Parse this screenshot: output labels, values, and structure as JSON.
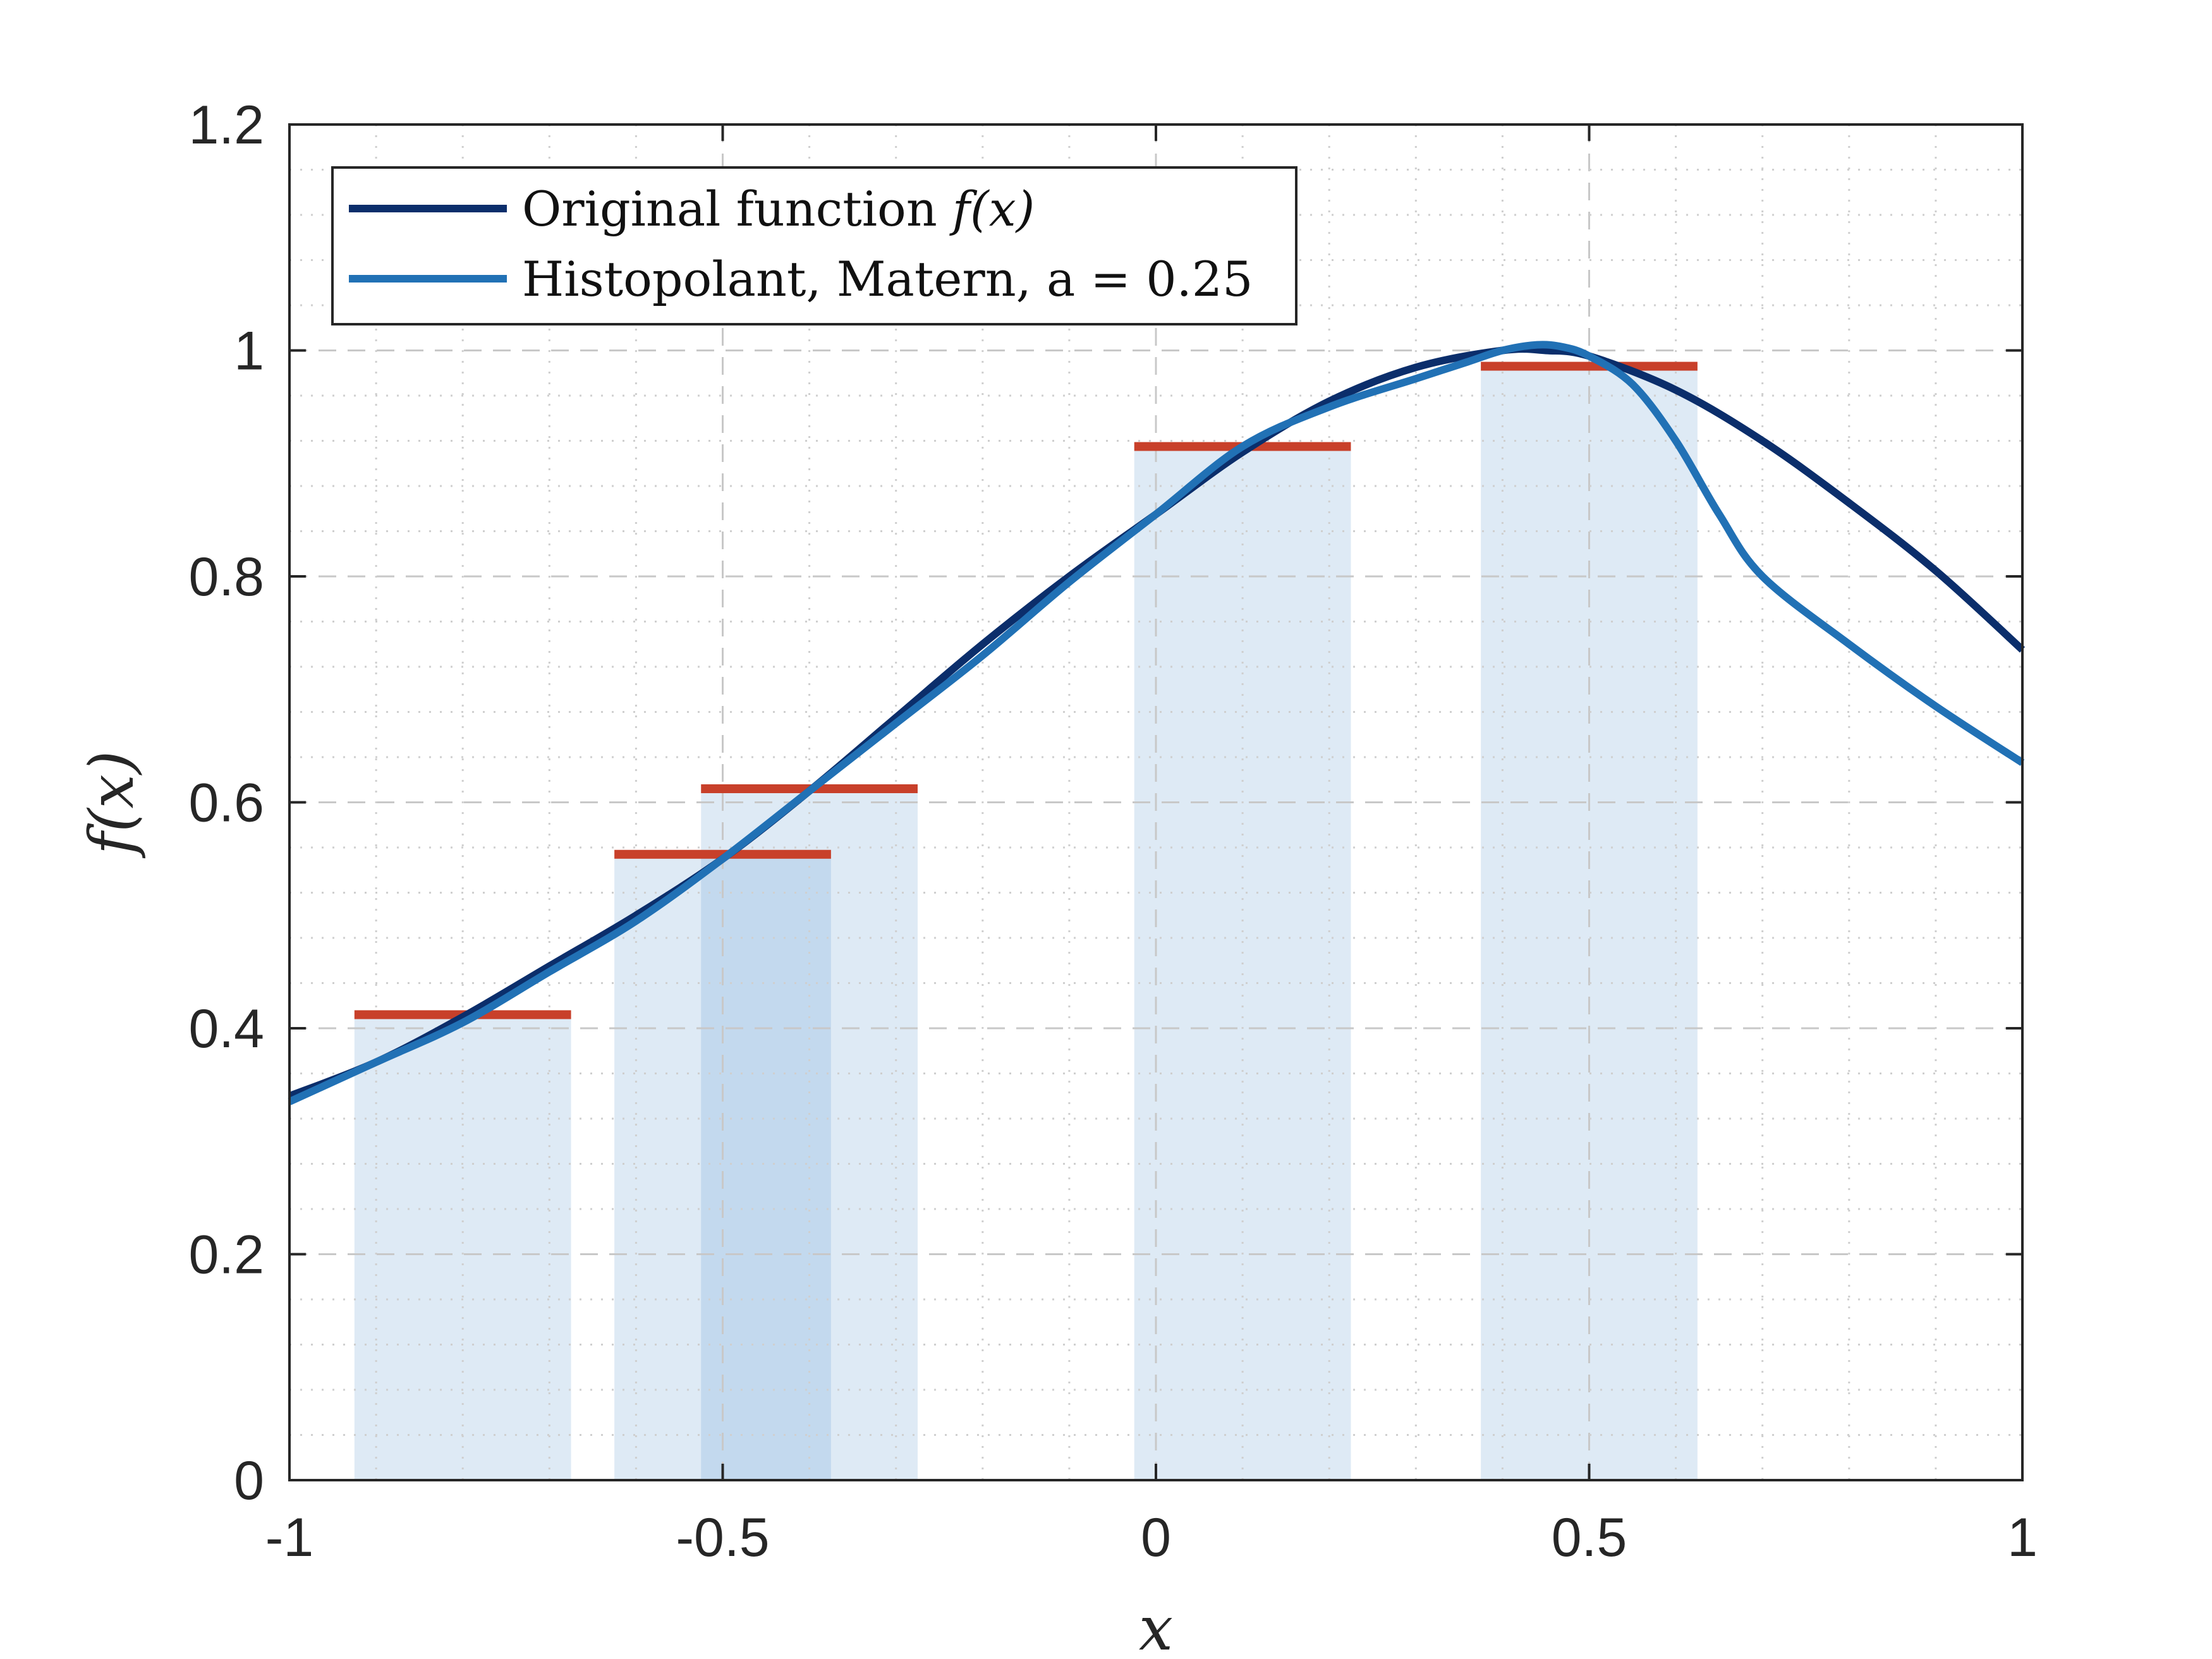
{
  "chart_data": {
    "type": "line",
    "title": "",
    "xlabel": "x",
    "ylabel": "f(x)",
    "xlim": [
      -1,
      1
    ],
    "ylim": [
      0,
      1.2
    ],
    "grid": true,
    "legend_position": "top-left",
    "x_ticks": [
      -1,
      -0.5,
      0,
      0.5,
      1
    ],
    "x_tick_labels": [
      "-1",
      "-0.5",
      "0",
      "0.5",
      "1"
    ],
    "y_ticks": [
      0,
      0.2,
      0.4,
      0.6,
      0.8,
      1,
      1.2
    ],
    "y_tick_labels": [
      "0",
      "0.2",
      "0.4",
      "0.6",
      "0.8",
      "1",
      "1.2"
    ],
    "series": [
      {
        "name": "Original function f(x)",
        "legend_label": "Original function ",
        "legend_math": "f(x)",
        "color": "#0b2e6b",
        "x": [
          -1.0,
          -0.9,
          -0.8,
          -0.7,
          -0.6,
          -0.5,
          -0.4,
          -0.3,
          -0.2,
          -0.1,
          0.0,
          0.1,
          0.2,
          0.3,
          0.4,
          0.45,
          0.5,
          0.6,
          0.7,
          0.8,
          0.9,
          1.0
        ],
        "y": [
          0.34,
          0.37,
          0.41,
          0.455,
          0.5,
          0.55,
          0.61,
          0.675,
          0.74,
          0.8,
          0.855,
          0.91,
          0.955,
          0.985,
          1.0,
          1.0,
          0.995,
          0.965,
          0.92,
          0.865,
          0.805,
          0.735
        ]
      },
      {
        "name": "Histopolant, Matern, a = 0.25",
        "legend_label": "Histopolant, Matern, a = 0.25",
        "color": "#2171b5",
        "x": [
          -1.0,
          -0.9,
          -0.8,
          -0.7,
          -0.6,
          -0.5,
          -0.4,
          -0.3,
          -0.2,
          -0.1,
          0.0,
          0.1,
          0.2,
          0.3,
          0.36,
          0.4,
          0.44,
          0.47,
          0.5,
          0.55,
          0.6,
          0.65,
          0.7,
          0.8,
          0.9,
          1.0
        ],
        "y": [
          0.335,
          0.37,
          0.405,
          0.45,
          0.495,
          0.55,
          0.61,
          0.67,
          0.73,
          0.795,
          0.855,
          0.915,
          0.95,
          0.975,
          0.99,
          1.0,
          1.005,
          1.003,
          0.995,
          0.97,
          0.92,
          0.855,
          0.8,
          0.74,
          0.685,
          0.635
        ]
      }
    ],
    "bars": [
      {
        "x0": -0.925,
        "x1": -0.675,
        "height": 0.412,
        "fill": "#deeaf5"
      },
      {
        "x0": -0.625,
        "x1": -0.375,
        "height": 0.554,
        "fill": "#deeaf5"
      },
      {
        "x0": -0.525,
        "x1": -0.275,
        "height": 0.612,
        "fill": "#deeaf5"
      },
      {
        "x0": -0.025,
        "x1": 0.225,
        "height": 0.915,
        "fill": "#deeaf5"
      },
      {
        "x0": 0.375,
        "x1": 0.625,
        "height": 0.986,
        "fill": "#deeaf5"
      }
    ],
    "overlap_fill": "#c3d9ee",
    "bar_mean_color": "#c8402a"
  }
}
